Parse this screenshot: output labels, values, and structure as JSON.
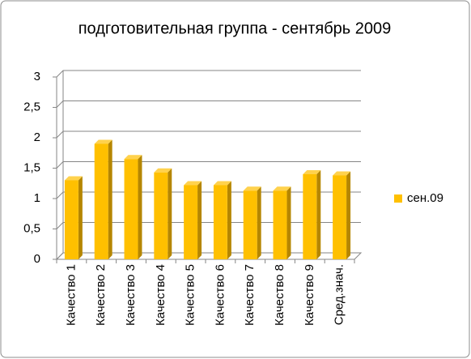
{
  "chart_data": {
    "type": "bar3d",
    "title": "подготовительная группа - сентябрь 2009",
    "categories": [
      "Качество 1",
      "Качество 2",
      "Качество 3",
      "Качество 4",
      "Качество 5",
      "Качество 6",
      "Качество 7",
      "Качество 8",
      "Качество 9",
      "Сред.знач."
    ],
    "series": [
      {
        "name": "сен.09",
        "color": "#ffc000",
        "values": [
          1.3,
          1.9,
          1.65,
          1.43,
          1.22,
          1.22,
          1.13,
          1.13,
          1.4,
          1.38
        ]
      }
    ],
    "ylim": [
      0,
      3
    ],
    "yticks": [
      0,
      {
        "value": 0.5,
        "label": "0,5"
      },
      1,
      {
        "value": 1.5,
        "label": "1,5"
      },
      2,
      {
        "value": 2.5,
        "label": "2,5"
      },
      3
    ],
    "grid": true,
    "legend": "right"
  }
}
